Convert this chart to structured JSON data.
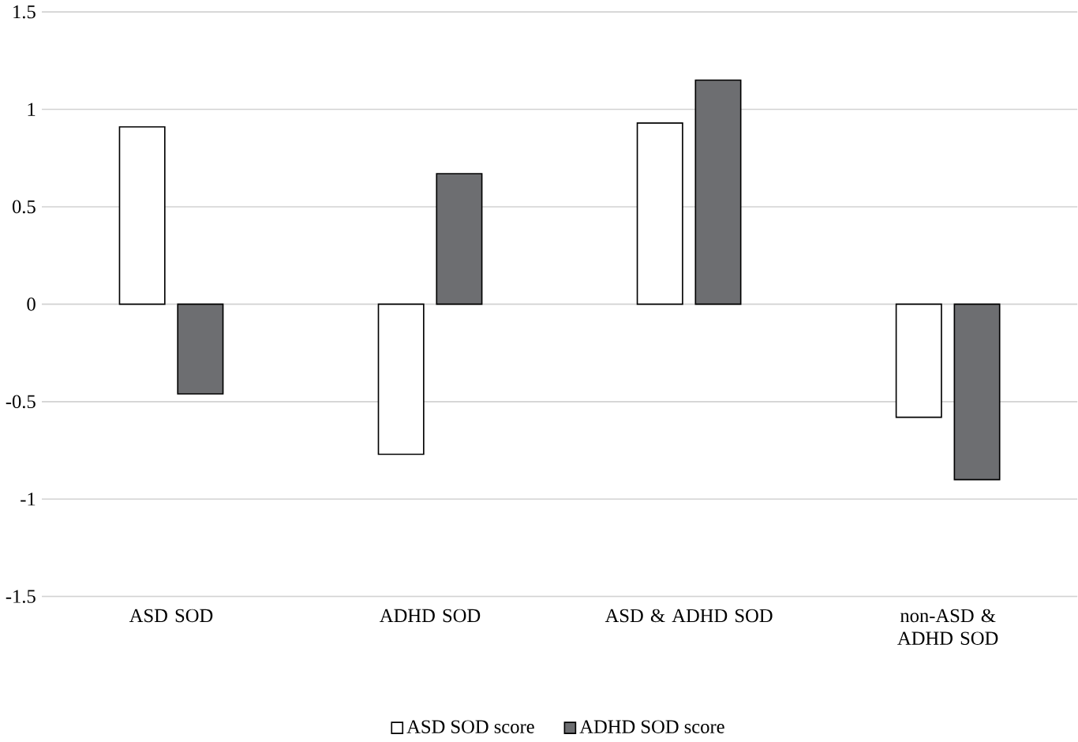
{
  "chart_data": {
    "type": "bar",
    "categories": [
      "ASD SOD",
      "ADHD SOD",
      "ASD & ADHD SOD",
      "non-ASD & ADHD SOD"
    ],
    "series": [
      {
        "name": "ASD SOD score",
        "color": "#ffffff",
        "values": [
          0.91,
          -0.77,
          0.93,
          -0.58
        ]
      },
      {
        "name": "ADHD SOD score",
        "color": "#6d6e71",
        "values": [
          -0.46,
          0.67,
          1.15,
          -0.9
        ]
      }
    ],
    "ylim": [
      -1.5,
      1.5
    ],
    "yticks": [
      1.5,
      1,
      0.5,
      0,
      -0.5,
      -1,
      -1.5
    ],
    "grid": "y",
    "legend": "bottom"
  }
}
